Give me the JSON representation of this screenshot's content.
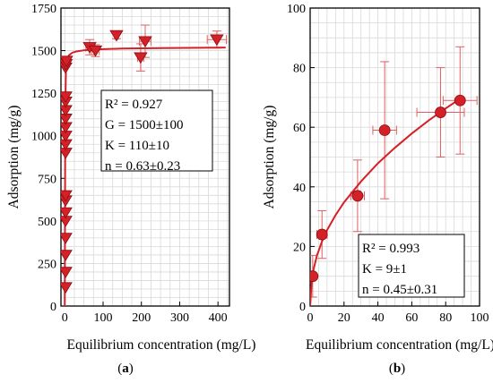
{
  "panel_labels": {
    "a": "(a)",
    "b": "(b)"
  },
  "chart_data": [
    {
      "type": "scatter",
      "panel": "a",
      "xlabel": "Equilibrium concentration (mg/L)",
      "ylabel": "Adsorption (mg/g)",
      "xlim": [
        -10,
        430
      ],
      "ylim": [
        0,
        1750
      ],
      "xticks": [
        0,
        100,
        200,
        300,
        400
      ],
      "yticks": [
        0,
        250,
        500,
        750,
        1000,
        1250,
        1500,
        1750
      ],
      "grid": true,
      "marker": "triangle-down",
      "color": "#d42027",
      "points": [
        {
          "x": 2,
          "y": 110
        },
        {
          "x": 2,
          "y": 200
        },
        {
          "x": 2,
          "y": 300
        },
        {
          "x": 2,
          "y": 400
        },
        {
          "x": 2,
          "y": 500
        },
        {
          "x": 2,
          "y": 550
        },
        {
          "x": 2,
          "y": 620
        },
        {
          "x": 2,
          "y": 650
        },
        {
          "x": 2,
          "y": 900
        },
        {
          "x": 2,
          "y": 950
        },
        {
          "x": 2,
          "y": 1000
        },
        {
          "x": 2,
          "y": 1050
        },
        {
          "x": 2,
          "y": 1100
        },
        {
          "x": 2,
          "y": 1150
        },
        {
          "x": 2,
          "y": 1200
        },
        {
          "x": 2,
          "y": 1230
        },
        {
          "x": 2,
          "y": 1400
        },
        {
          "x": 3,
          "y": 1420
        },
        {
          "x": 4,
          "y": 1440
        },
        {
          "x": 65,
          "y": 1520,
          "xerr": 10,
          "yerr": 45
        },
        {
          "x": 80,
          "y": 1500,
          "xerr": 10,
          "yerr": 35
        },
        {
          "x": 135,
          "y": 1590,
          "xerr": 5,
          "yerr": 20
        },
        {
          "x": 198,
          "y": 1460,
          "xerr": 8,
          "yerr": 80
        },
        {
          "x": 210,
          "y": 1555,
          "xerr": 15,
          "yerr": 95
        },
        {
          "x": 397,
          "y": 1565,
          "xerr": 25,
          "yerr": 50
        }
      ],
      "fit_curve": {
        "x": [
          0,
          1,
          2,
          3,
          5,
          8,
          12,
          20,
          30,
          50,
          80,
          150,
          250,
          420
        ],
        "y": [
          0,
          900,
          1250,
          1380,
          1440,
          1462,
          1475,
          1488,
          1495,
          1502,
          1507,
          1512,
          1515,
          1518
        ]
      },
      "annotation": [
        "R² = 0.927",
        "G = 1500±100",
        "K = 110±10",
        "n = 0.63±0.23"
      ]
    },
    {
      "type": "scatter",
      "panel": "b",
      "xlabel": "Equilibrium concentration (mg/L)",
      "ylabel": "Adsorption (mg/g)",
      "xlim": [
        0,
        100
      ],
      "ylim": [
        0,
        100
      ],
      "xticks": [
        0,
        20,
        40,
        60,
        80,
        100
      ],
      "yticks": [
        0,
        20,
        40,
        60,
        80,
        100
      ],
      "grid": true,
      "marker": "circle",
      "color": "#d42027",
      "points": [
        {
          "x": 1.5,
          "y": 10,
          "xerr": 1,
          "yerr": 7
        },
        {
          "x": 7,
          "y": 24,
          "xerr": 3,
          "yerr": 8
        },
        {
          "x": 28,
          "y": 37,
          "xerr": 4,
          "yerr": 12
        },
        {
          "x": 44,
          "y": 59,
          "xerr": 7,
          "yerr": 23
        },
        {
          "x": 77,
          "y": 65,
          "xerr": 14,
          "yerr": 15
        },
        {
          "x": 88.5,
          "y": 69,
          "xerr": 10,
          "yerr": 18
        }
      ],
      "fit_curve": {
        "x": [
          0,
          1,
          2,
          4,
          7,
          10,
          15,
          20,
          30,
          40,
          50,
          60,
          70,
          80,
          88
        ],
        "y": [
          0,
          9,
          12.3,
          16.9,
          21.7,
          25.5,
          30.5,
          34.8,
          41.8,
          47.9,
          53.1,
          57.9,
          62.3,
          66.3,
          69.4
        ]
      },
      "annotation": [
        "R² = 0.993",
        "K = 9±1",
        "n = 0.45±0.31"
      ]
    }
  ]
}
